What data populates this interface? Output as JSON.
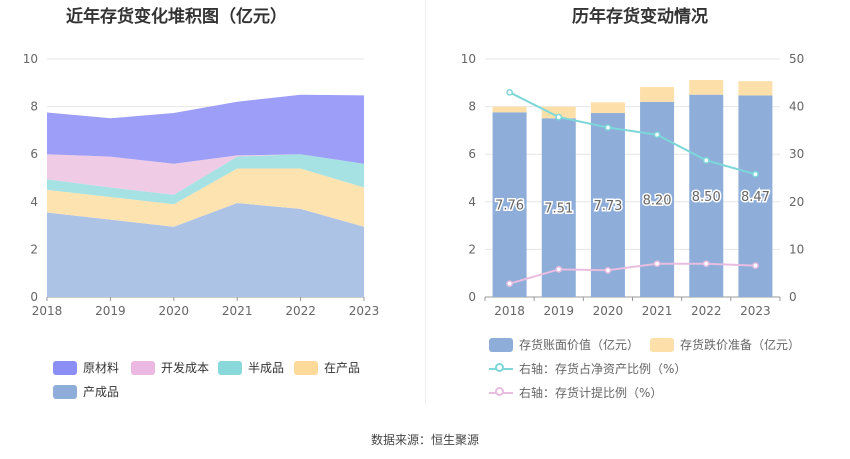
{
  "source": "数据来源：恒生聚源",
  "chart_data": [
    {
      "type": "area",
      "stacked": true,
      "title": "近年存货变化堆积图（亿元）",
      "x": [
        "2018",
        "2019",
        "2020",
        "2021",
        "2022",
        "2023"
      ],
      "ylim": [
        0,
        10
      ],
      "yticks": [
        "0",
        "2",
        "4",
        "6",
        "8",
        "10"
      ],
      "grid": true,
      "legend_position": "bottom",
      "series": [
        {
          "name": "产成品",
          "color": "#adc3e6",
          "values": [
            3.55,
            3.25,
            2.95,
            3.95,
            3.7,
            2.95
          ]
        },
        {
          "name": "在产品",
          "color": "#fde3b0",
          "values": [
            0.95,
            0.95,
            0.95,
            1.45,
            1.7,
            1.65
          ]
        },
        {
          "name": "半成品",
          "color": "#a6e2e3",
          "values": [
            0.45,
            0.4,
            0.4,
            0.5,
            0.6,
            1.0
          ]
        },
        {
          "name": "开发成本",
          "color": "#efcbe6",
          "values": [
            1.05,
            1.3,
            1.3,
            0.05,
            0.0,
            0.0
          ]
        },
        {
          "name": "原材料",
          "color": "#9c9ef7",
          "values": [
            1.75,
            1.61,
            2.13,
            2.25,
            2.5,
            2.87
          ]
        }
      ],
      "legend": [
        {
          "name": "原材料",
          "color": "#8a8ef5"
        },
        {
          "name": "开发成本",
          "color": "#eab8e0"
        },
        {
          "name": "半成品",
          "color": "#89d9db"
        },
        {
          "name": "在产品",
          "color": "#fdd99a"
        },
        {
          "name": "产成品",
          "color": "#8eadd9"
        }
      ]
    },
    {
      "type": "bar",
      "stacked": true,
      "title": "历年存货变动情况",
      "categories": [
        "2018",
        "2019",
        "2020",
        "2021",
        "2022",
        "2023"
      ],
      "ylim": [
        0,
        10
      ],
      "yticks": [
        "0",
        "2",
        "4",
        "6",
        "8",
        "10"
      ],
      "y2lim": [
        0,
        50
      ],
      "y2ticks": [
        "0",
        "10",
        "20",
        "30",
        "40",
        "50"
      ],
      "grid": true,
      "legend_position": "bottom",
      "series": [
        {
          "name": "存货账面价值（亿元）",
          "color": "#8eadd9",
          "values": [
            7.76,
            7.51,
            7.73,
            8.2,
            8.5,
            8.47
          ],
          "labels": [
            "7.76",
            "7.51",
            "7.73",
            "8.20",
            "8.50",
            "8.47"
          ]
        },
        {
          "name": "存货跌价准备（亿元）",
          "color": "#fde0a9",
          "values": [
            0.24,
            0.49,
            0.45,
            0.62,
            0.62,
            0.6
          ]
        }
      ],
      "lines": [
        {
          "name": "右轴：存货占净资产比例（%）",
          "color": "#7dd7d9",
          "axis": "right",
          "values": [
            43.0,
            37.8,
            35.6,
            34.1,
            28.7,
            25.8
          ]
        },
        {
          "name": "右轴：存货计提比例（%）",
          "color": "#e8bde0",
          "axis": "right",
          "values": [
            2.8,
            5.8,
            5.6,
            7.0,
            7.0,
            6.6
          ]
        }
      ]
    }
  ]
}
